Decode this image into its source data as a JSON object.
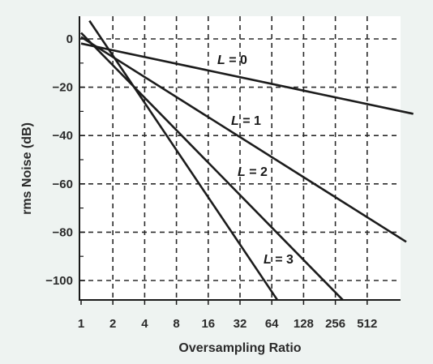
{
  "chart_data": {
    "type": "line",
    "title": "",
    "xlabel": "Oversampling Ratio",
    "ylabel": "rms Noise (dB)",
    "x_scale": "log2",
    "xlim": [
      1,
      1400
    ],
    "ylim": [
      -110,
      5
    ],
    "x_ticks": [
      1,
      2,
      4,
      8,
      16,
      32,
      64,
      128,
      256,
      512
    ],
    "x_tick_labels": [
      "1",
      "2",
      "4",
      "8",
      "16",
      "32",
      "64",
      "128",
      "256",
      "512"
    ],
    "y_ticks": [
      0,
      -20,
      -40,
      -60,
      -80,
      -100
    ],
    "y_tick_labels": [
      "0",
      "−20",
      "−40",
      "−60",
      "−80",
      "−100"
    ],
    "grid": true,
    "legend": "none",
    "series": [
      {
        "name": "L = 0",
        "label_var": "L",
        "label_val": "= 0",
        "x": [
          1,
          1400
        ],
        "y": [
          -1.9,
          -31
        ]
      },
      {
        "name": "L = 1",
        "label_var": "L",
        "label_val": "= 1",
        "x": [
          1,
          1200
        ],
        "y": [
          0.8,
          -84
        ]
      },
      {
        "name": "L = 2",
        "label_var": "L",
        "label_val": "= 2",
        "x": [
          1,
          300
        ],
        "y": [
          2.5,
          -108
        ]
      },
      {
        "name": "L = 3",
        "label_var": "L",
        "label_val": "= 3",
        "x": [
          1.2,
          72
        ],
        "y": [
          7.5,
          -108
        ]
      }
    ]
  }
}
